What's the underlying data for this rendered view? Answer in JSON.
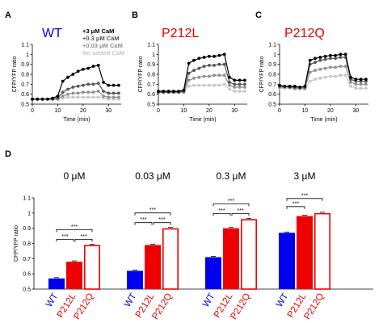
{
  "colors": {
    "wt": "#0000ee",
    "p212l": "#ee0000",
    "p212q": "#ee0000",
    "cam_high": "#000000",
    "cam_mid": "#555555",
    "cam_low": "#909090",
    "cam_none": "#c8c8c8"
  },
  "panels": {
    "A": {
      "letter": "A",
      "title": "WT"
    },
    "B": {
      "letter": "B",
      "title": "P212L"
    },
    "C": {
      "letter": "C",
      "title": "P212Q"
    },
    "D": {
      "letter": "D"
    }
  },
  "legend": [
    "+3 μM CaM",
    "+0.3 μM CaM",
    "+0.03 μM CaM",
    "No added CaM"
  ],
  "sig_label": "***",
  "chart_data": [
    {
      "type": "line",
      "panel": "A",
      "title": "WT",
      "xlabel": "Time (min)",
      "ylabel": "CFP/YFP ratio",
      "xlim": [
        0,
        35
      ],
      "ylim": [
        0.5,
        1.1
      ],
      "xticks": [
        0,
        10,
        20,
        30
      ],
      "yticks": [
        0.5,
        0.6,
        0.7,
        0.8,
        0.9,
        1.0,
        1.1
      ],
      "x": [
        0,
        2,
        4,
        6,
        8,
        10,
        12,
        14,
        16,
        18,
        20,
        22,
        24,
        26,
        28,
        30,
        32,
        34
      ],
      "series": [
        {
          "name": "+3 μM CaM",
          "values": [
            0.55,
            0.55,
            0.55,
            0.55,
            0.56,
            0.58,
            0.73,
            0.77,
            0.8,
            0.83,
            0.85,
            0.86,
            0.88,
            0.89,
            0.72,
            0.69,
            0.69,
            0.69
          ]
        },
        {
          "name": "+0.3 μM CaM",
          "values": [
            0.55,
            0.55,
            0.55,
            0.55,
            0.55,
            0.56,
            0.62,
            0.65,
            0.67,
            0.68,
            0.69,
            0.7,
            0.7,
            0.71,
            0.63,
            0.61,
            0.61,
            0.61
          ]
        },
        {
          "name": "+0.03 μM CaM",
          "values": [
            0.55,
            0.55,
            0.55,
            0.55,
            0.55,
            0.55,
            0.58,
            0.6,
            0.61,
            0.61,
            0.62,
            0.62,
            0.62,
            0.63,
            0.58,
            0.57,
            0.57,
            0.57
          ]
        },
        {
          "name": "No added CaM",
          "values": [
            0.55,
            0.55,
            0.55,
            0.55,
            0.55,
            0.55,
            0.56,
            0.57,
            0.57,
            0.57,
            0.57,
            0.57,
            0.57,
            0.57,
            0.56,
            0.55,
            0.55,
            0.55
          ]
        }
      ]
    },
    {
      "type": "line",
      "panel": "B",
      "title": "P212L",
      "xlabel": "Time (min)",
      "ylabel": "CFP/YFP ratio",
      "xlim": [
        0,
        35
      ],
      "ylim": [
        0.5,
        1.1
      ],
      "xticks": [
        0,
        10,
        20,
        30
      ],
      "yticks": [
        0.5,
        0.6,
        0.7,
        0.8,
        0.9,
        1.0,
        1.1
      ],
      "x": [
        0,
        2,
        4,
        6,
        8,
        10,
        12,
        14,
        16,
        18,
        20,
        22,
        24,
        26,
        28,
        30,
        32,
        34
      ],
      "series": [
        {
          "name": "+3 μM CaM",
          "values": [
            0.63,
            0.63,
            0.63,
            0.63,
            0.63,
            0.64,
            0.91,
            0.94,
            0.96,
            0.97,
            0.98,
            0.98,
            0.99,
            1.0,
            0.77,
            0.74,
            0.74,
            0.74
          ]
        },
        {
          "name": "+0.3 μM CaM",
          "values": [
            0.62,
            0.62,
            0.62,
            0.62,
            0.62,
            0.63,
            0.81,
            0.84,
            0.86,
            0.88,
            0.89,
            0.89,
            0.9,
            0.9,
            0.72,
            0.7,
            0.7,
            0.7
          ]
        },
        {
          "name": "+0.03 μM CaM",
          "values": [
            0.62,
            0.62,
            0.62,
            0.62,
            0.62,
            0.62,
            0.74,
            0.76,
            0.77,
            0.78,
            0.78,
            0.79,
            0.79,
            0.79,
            0.69,
            0.67,
            0.67,
            0.67
          ]
        },
        {
          "name": "No added CaM",
          "values": [
            0.62,
            0.62,
            0.62,
            0.62,
            0.62,
            0.62,
            0.68,
            0.69,
            0.69,
            0.69,
            0.69,
            0.69,
            0.69,
            0.7,
            0.65,
            0.63,
            0.63,
            0.63
          ]
        }
      ]
    },
    {
      "type": "line",
      "panel": "C",
      "title": "P212Q",
      "xlabel": "Time (min)",
      "ylabel": "CFP/YFP ratio",
      "xlim": [
        0,
        35
      ],
      "ylim": [
        0.5,
        1.1
      ],
      "xticks": [
        0,
        10,
        20,
        30
      ],
      "yticks": [
        0.5,
        0.6,
        0.7,
        0.8,
        0.9,
        1.0,
        1.1
      ],
      "x": [
        0,
        2,
        4,
        6,
        8,
        10,
        12,
        14,
        16,
        18,
        20,
        22,
        24,
        26,
        28,
        30,
        32,
        34
      ],
      "series": [
        {
          "name": "+3 μM CaM",
          "values": [
            0.69,
            0.68,
            0.68,
            0.68,
            0.67,
            0.68,
            0.94,
            0.96,
            0.97,
            0.98,
            0.99,
            0.99,
            1.0,
            1.0,
            0.77,
            0.75,
            0.75,
            0.75
          ]
        },
        {
          "name": "+0.3 μM CaM",
          "values": [
            0.68,
            0.68,
            0.67,
            0.67,
            0.67,
            0.67,
            0.9,
            0.92,
            0.94,
            0.95,
            0.96,
            0.96,
            0.97,
            0.97,
            0.75,
            0.73,
            0.73,
            0.73
          ]
        },
        {
          "name": "+0.03 μM CaM",
          "values": [
            0.67,
            0.67,
            0.67,
            0.66,
            0.66,
            0.66,
            0.82,
            0.84,
            0.85,
            0.86,
            0.87,
            0.87,
            0.88,
            0.88,
            0.72,
            0.7,
            0.7,
            0.7
          ]
        },
        {
          "name": "No added CaM",
          "values": [
            0.66,
            0.66,
            0.66,
            0.65,
            0.65,
            0.65,
            0.73,
            0.75,
            0.76,
            0.77,
            0.78,
            0.78,
            0.79,
            0.79,
            0.68,
            0.66,
            0.66,
            0.66
          ]
        }
      ]
    },
    {
      "type": "bar",
      "panel": "D",
      "ylabel": "CFP/YFP ratio",
      "ylim": [
        0.5,
        1.1
      ],
      "yticks": [
        0.5,
        0.6,
        0.7,
        0.8,
        0.9,
        1.0,
        1.1
      ],
      "categories": [
        "WT",
        "P212L",
        "P212Q"
      ],
      "groups": [
        {
          "label": "0 μM",
          "values": [
            0.57,
            0.68,
            0.79
          ],
          "significance": [
            "***",
            "***",
            "***"
          ]
        },
        {
          "label": "0.03 μM",
          "values": [
            0.62,
            0.79,
            0.9
          ],
          "significance": [
            "***",
            "***",
            "***"
          ]
        },
        {
          "label": "0.3 μM",
          "values": [
            0.71,
            0.9,
            0.96
          ],
          "significance": [
            "***",
            "***",
            "***"
          ]
        },
        {
          "label": "3 μM",
          "values": [
            0.87,
            0.98,
            1.0
          ],
          "significance": [
            "***",
            "***"
          ]
        }
      ]
    }
  ]
}
